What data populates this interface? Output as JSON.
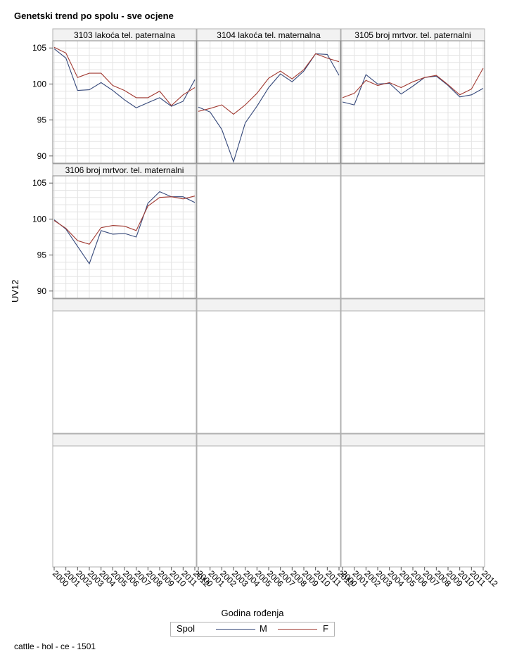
{
  "title": "Genetski trend po spolu - sve ocjene",
  "footnote": "cattle - hol - ce - 1501",
  "colors": {
    "M": "#35487a",
    "F": "#a23b33",
    "grid": "#e4e4e4",
    "frame": "#b0b0b0",
    "header_bg": "#f2f2f2"
  },
  "chart_data": {
    "type": "line",
    "xlabel": "Godina rođenja",
    "ylabel": "UV12",
    "x": [
      2000,
      2001,
      2002,
      2003,
      2004,
      2005,
      2006,
      2007,
      2008,
      2009,
      2010,
      2011,
      2012
    ],
    "x_tick_labels": [
      "2000",
      "2001",
      "2002",
      "2003",
      "2004",
      "2005",
      "2006",
      "2007",
      "2008",
      "2009",
      "2010",
      "2011",
      "2012"
    ],
    "ylim": [
      89,
      106
    ],
    "y_ticks": [
      90,
      95,
      100,
      105
    ],
    "y_tick_labels": [
      "90",
      "95",
      "100",
      "105"
    ],
    "grid": true,
    "legend": {
      "title": "Spol",
      "position": "bottom-center",
      "entries": [
        "M",
        "F"
      ]
    },
    "panels": [
      {
        "label": "3103 lakoća tel. paternalna",
        "series": [
          {
            "name": "M",
            "values": [
              104.9,
              103.6,
              99.1,
              99.2,
              100.2,
              99.1,
              97.8,
              96.7,
              97.4,
              98.1,
              96.9,
              97.6,
              100.6
            ]
          },
          {
            "name": "F",
            "values": [
              105.1,
              104.3,
              100.9,
              101.5,
              101.5,
              99.8,
              99.1,
              98.1,
              98.1,
              99.0,
              97.0,
              98.5,
              99.5
            ]
          }
        ]
      },
      {
        "label": "3104 lakoća tel. maternalna",
        "series": [
          {
            "name": "M",
            "values": [
              96.8,
              96.1,
              93.7,
              89.2,
              94.6,
              96.9,
              99.5,
              101.4,
              100.3,
              101.8,
              104.2,
              104.1,
              101.2
            ]
          },
          {
            "name": "F",
            "values": [
              96.2,
              96.6,
              97.1,
              95.8,
              97.1,
              98.7,
              100.8,
              101.8,
              100.7,
              102.0,
              104.2,
              103.6,
              103.1
            ]
          }
        ]
      },
      {
        "label": "3105 broj mrtvor. tel. paternalni",
        "series": [
          {
            "name": "M",
            "values": [
              97.5,
              97.1,
              101.3,
              100.0,
              100.1,
              98.6,
              99.7,
              100.9,
              101.1,
              99.8,
              98.2,
              98.5,
              99.4
            ]
          },
          {
            "name": "F",
            "values": [
              98.1,
              98.7,
              100.5,
              99.8,
              100.2,
              99.5,
              100.3,
              100.9,
              101.2,
              99.9,
              98.5,
              99.3,
              102.2
            ]
          }
        ]
      },
      {
        "label": "3106 broj mrtvor. tel. maternalni",
        "series": [
          {
            "name": "M",
            "values": [
              99.9,
              98.6,
              96.2,
              93.8,
              98.4,
              97.9,
              98.0,
              97.5,
              102.2,
              103.8,
              103.1,
              103.1,
              102.3
            ]
          },
          {
            "name": "F",
            "values": [
              99.8,
              98.7,
              97.0,
              96.5,
              98.8,
              99.1,
              99.0,
              98.4,
              101.8,
              103.0,
              103.1,
              102.8,
              103.2
            ]
          }
        ]
      }
    ]
  }
}
